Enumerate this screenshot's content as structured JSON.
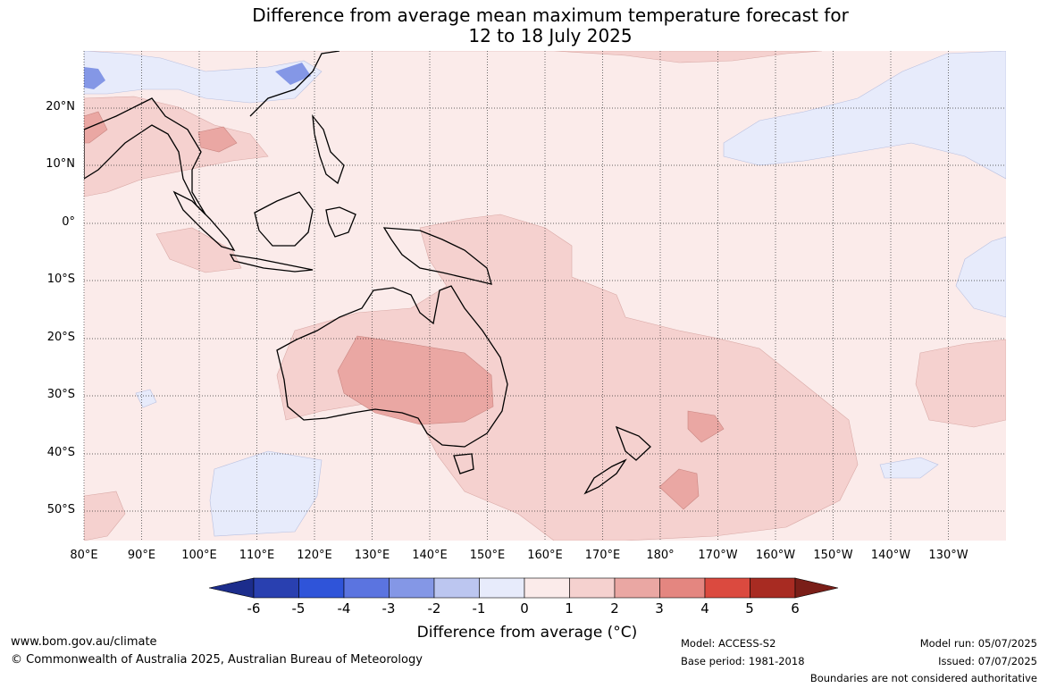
{
  "title": {
    "line1": "Difference from average mean maximum temperature forecast for",
    "line2": "12 to 18 July 2025"
  },
  "map": {
    "lat_labels": [
      "20°N",
      "10°N",
      "0°",
      "10°S",
      "20°S",
      "30°S",
      "40°S",
      "50°S"
    ],
    "lon_labels": [
      "80°E",
      "90°E",
      "100°E",
      "110°E",
      "120°E",
      "130°E",
      "140°E",
      "150°E",
      "160°E",
      "170°E",
      "180°",
      "170°W",
      "160°W",
      "150°W",
      "140°W",
      "130°W"
    ],
    "background_color": "#fbebea"
  },
  "colorbar": {
    "ticks": [
      "-6",
      "-5",
      "-4",
      "-3",
      "-2",
      "-1",
      "0",
      "1",
      "2",
      "3",
      "4",
      "5",
      "6"
    ],
    "colors": [
      "#1c2d8c",
      "#2940b0",
      "#2f54d9",
      "#5b74e0",
      "#8497e6",
      "#bcc6f0",
      "#e7ebfb",
      "#fbebea",
      "#f5d1cf",
      "#eaa7a3",
      "#e48680",
      "#db4a3f",
      "#a82b22",
      "#7a1e18"
    ],
    "title": "Difference from average (°C)"
  },
  "footer": {
    "website": "www.bom.gov.au/climate",
    "copyright": "© Commonwealth of Australia 2025, Australian Bureau of Meteorology",
    "model": "Model: ACCESS-S2",
    "base_period": "Base period: 1981-2018",
    "model_run": "Model run: 05/07/2025",
    "issued": "Issued: 07/07/2025",
    "disclaimer": "Boundaries are not considered authoritative"
  }
}
